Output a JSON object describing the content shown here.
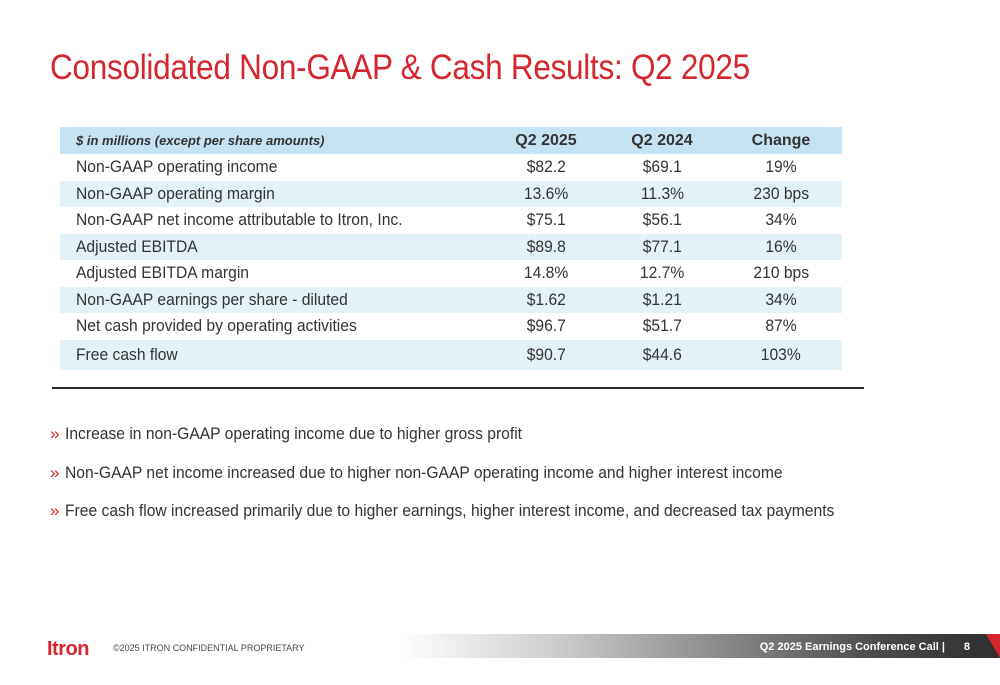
{
  "slide": {
    "title": "Consolidated Non-GAAP & Cash Results: Q2 2025",
    "colors": {
      "title": "#d6262d",
      "header_row": "#c5e3f3",
      "shaded_row": "#e3f1f9",
      "brand": "#d6262d"
    }
  },
  "table": {
    "headers": [
      "$ in millions (except per share amounts)",
      "Q2 2025",
      "Q2 2024",
      "Change"
    ],
    "rows": [
      [
        "Non-GAAP operating income",
        "$82.2",
        "$69.1",
        "19%"
      ],
      [
        "Non-GAAP operating margin",
        "13.6%",
        "11.3%",
        "230 bps"
      ],
      [
        "Non-GAAP net income attributable to Itron, Inc.",
        "$75.1",
        "$56.1",
        "34%"
      ],
      [
        "Adjusted EBITDA",
        "$89.8",
        "$77.1",
        "16%"
      ],
      [
        "Adjusted EBITDA margin",
        "14.8%",
        "12.7%",
        "210 bps"
      ],
      [
        "Non-GAAP earnings per share - diluted",
        "$1.62",
        "$1.21",
        "34%"
      ],
      [
        "Net cash provided by operating activities",
        "$96.7",
        "$51.7",
        "87%"
      ],
      [
        "Free cash flow",
        "$90.7",
        "$44.6",
        "103%"
      ]
    ]
  },
  "bullets": {
    "marker": "»",
    "items": [
      "Increase in non-GAAP operating income due to higher gross profit",
      "Non-GAAP net income increased due to higher non-GAAP operating income and higher interest income",
      "Free cash flow increased primarily due to higher earnings, higher interest income, and decreased tax payments"
    ]
  },
  "footer": {
    "logo_text": "Itron",
    "copyright": "©2025  ITRON CONFIDENTIAL PROPRIETARY",
    "event": "Q2 2025 Earnings Conference Call  |",
    "page_number": "8"
  }
}
